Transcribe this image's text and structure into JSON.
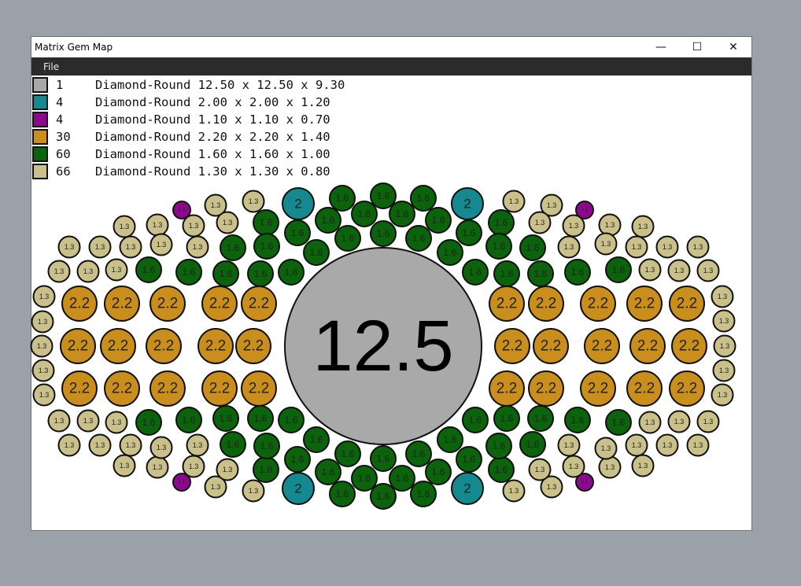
{
  "window": {
    "title": "Matrix Gem Map",
    "minimize_icon": "minimize-icon",
    "maximize_icon": "maximize-icon",
    "close_icon": "close-icon"
  },
  "menu": {
    "items": [
      {
        "label": "File"
      }
    ]
  },
  "gems": [
    {
      "count": "1",
      "description": "Diamond-Round 12.50 x 12.50 x 9.30",
      "label": "12.5",
      "color": "#a9a9a9"
    },
    {
      "count": "4",
      "description": "Diamond-Round 2.00 x 2.00 x 1.20",
      "label": "2",
      "color": "#14898f"
    },
    {
      "count": "4",
      "description": "Diamond-Round 1.10 x 1.10 x 0.70",
      "label": "1.1",
      "color": "#8b0a8b"
    },
    {
      "count": "30",
      "description": "Diamond-Round 2.20 x 2.20 x 1.40",
      "label": "2.2",
      "color": "#c98e1c"
    },
    {
      "count": "60",
      "description": "Diamond-Round 1.60 x 1.60 x 1.00",
      "label": "1.6",
      "color": "#0b640b"
    },
    {
      "count": "66",
      "description": "Diamond-Round 1.30 x 1.30 x 0.80",
      "label": "1.3",
      "color": "#c9c08a"
    }
  ]
}
